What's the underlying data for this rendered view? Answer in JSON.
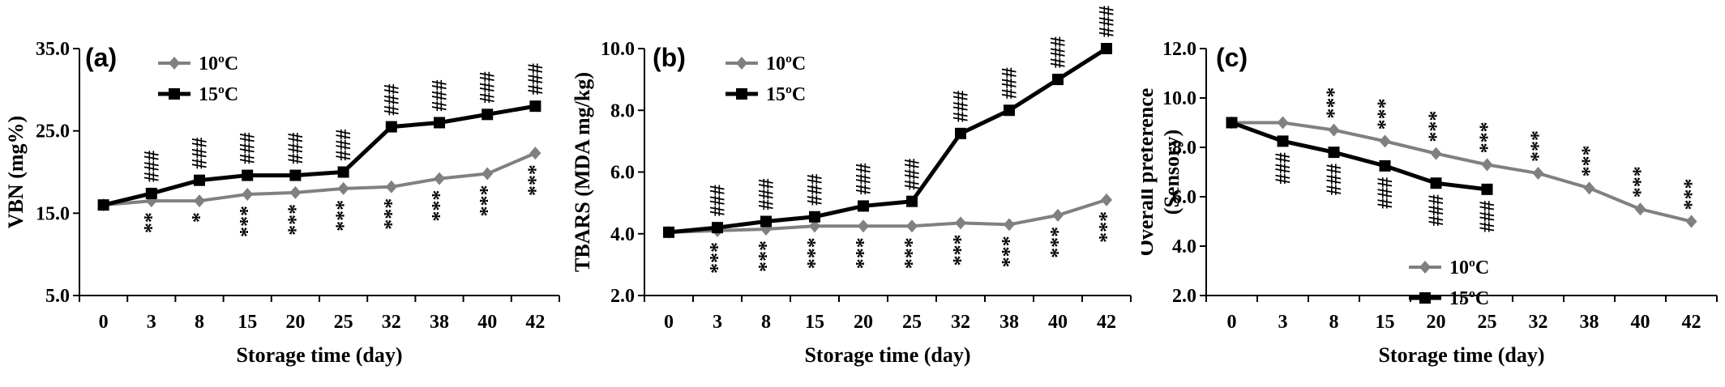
{
  "chart_data": [
    {
      "type": "line",
      "panel_label": "(a)",
      "xlabel": "Storage time (day)",
      "ylabel": "VBN (mg%)",
      "categories": [
        "0",
        "3",
        "8",
        "15",
        "20",
        "25",
        "32",
        "38",
        "40",
        "42"
      ],
      "ylim": [
        5.0,
        35.0
      ],
      "yticks": [
        "5.0",
        "15.0",
        "25.0",
        "35.0"
      ],
      "legend_placement": "top-left",
      "series": [
        {
          "name": "10ºC",
          "color": "#808080",
          "marker": "diamond",
          "values": [
            16.0,
            16.5,
            16.5,
            17.3,
            17.5,
            18.0,
            18.2,
            19.2,
            19.8,
            22.3
          ],
          "marks": [
            "",
            "**",
            "*",
            "***",
            "***",
            "***",
            "***",
            "***",
            "***",
            "***"
          ],
          "marks_position": "below"
        },
        {
          "name": "15ºC",
          "color": "#000000",
          "marker": "square",
          "values": [
            16.0,
            17.4,
            19.0,
            19.6,
            19.6,
            20.0,
            25.5,
            26.0,
            27.0,
            28.0
          ],
          "marks": [
            "",
            "###",
            "###",
            "###",
            "###",
            "###",
            "###",
            "###",
            "###",
            "###"
          ],
          "marks_position": "above"
        }
      ]
    },
    {
      "type": "line",
      "panel_label": "(b)",
      "xlabel": "Storage time (day)",
      "ylabel": "TBARS (MDA mg/kg)",
      "categories": [
        "0",
        "3",
        "8",
        "15",
        "20",
        "25",
        "32",
        "38",
        "40",
        "42"
      ],
      "ylim": [
        2.0,
        10.0
      ],
      "yticks": [
        "2.0",
        "4.0",
        "6.0",
        "8.0",
        "10.0"
      ],
      "legend_placement": "top-left",
      "series": [
        {
          "name": "10ºC",
          "color": "#808080",
          "marker": "diamond",
          "values": [
            4.05,
            4.1,
            4.15,
            4.25,
            4.25,
            4.25,
            4.35,
            4.3,
            4.6,
            5.1
          ],
          "marks": [
            "",
            "***",
            "***",
            "***",
            "***",
            "***",
            "***",
            "***",
            "***",
            "***"
          ],
          "marks_position": "below"
        },
        {
          "name": "15ºC",
          "color": "#000000",
          "marker": "square",
          "values": [
            4.05,
            4.2,
            4.4,
            4.55,
            4.9,
            5.05,
            7.25,
            8.0,
            9.0,
            10.0
          ],
          "marks": [
            "",
            "###",
            "###",
            "###",
            "###",
            "###",
            "###",
            "###",
            "###",
            "###"
          ],
          "marks_position": "above"
        }
      ]
    },
    {
      "type": "line",
      "panel_label": "(c)",
      "xlabel": "Storage time (day)",
      "ylabel": "Overall preference (Sensory)",
      "categories": [
        "0",
        "3",
        "8",
        "15",
        "20",
        "25",
        "32",
        "38",
        "40",
        "42"
      ],
      "ylim": [
        2.0,
        12.0
      ],
      "yticks": [
        "2.0",
        "4.0",
        "6.0",
        "8.0",
        "10.0",
        "12.0"
      ],
      "legend_placement": "bottom-right",
      "series": [
        {
          "name": "10ºC",
          "color": "#808080",
          "marker": "diamond",
          "values": [
            9.0,
            9.0,
            8.7,
            8.25,
            7.75,
            7.3,
            6.95,
            6.35,
            5.5,
            5.0
          ],
          "marks": [
            "",
            "",
            "***",
            "***",
            "***",
            "***",
            "***",
            "***",
            "***",
            "***"
          ],
          "marks_position": "above"
        },
        {
          "name": "15ºC",
          "color": "#000000",
          "marker": "square",
          "values": [
            9.0,
            8.25,
            7.8,
            7.25,
            6.55,
            6.3,
            null,
            null,
            null,
            null
          ],
          "marks": [
            "",
            "###",
            "###",
            "###",
            "###",
            "###",
            "",
            "",
            "",
            ""
          ],
          "marks_position": "below"
        }
      ]
    }
  ]
}
